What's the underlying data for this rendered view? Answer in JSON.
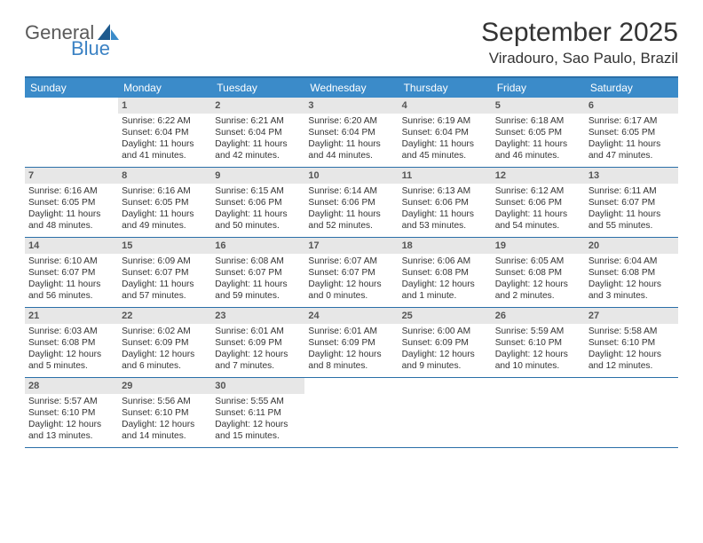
{
  "logo": {
    "word1": "General",
    "word2": "Blue"
  },
  "title": "September 2025",
  "location": "Viradouro, Sao Paulo, Brazil",
  "colors": {
    "header_bg": "#3b8bc9",
    "border": "#2a6fa8",
    "daynum_bg": "#e7e7e7",
    "logo_accent": "#3b82c4",
    "text": "#333333",
    "page_bg": "#ffffff"
  },
  "dow": [
    "Sunday",
    "Monday",
    "Tuesday",
    "Wednesday",
    "Thursday",
    "Friday",
    "Saturday"
  ],
  "weeks": [
    [
      {
        "n": "",
        "empty": true
      },
      {
        "n": "1",
        "sr": "Sunrise: 6:22 AM",
        "ss": "Sunset: 6:04 PM",
        "d1": "Daylight: 11 hours",
        "d2": "and 41 minutes."
      },
      {
        "n": "2",
        "sr": "Sunrise: 6:21 AM",
        "ss": "Sunset: 6:04 PM",
        "d1": "Daylight: 11 hours",
        "d2": "and 42 minutes."
      },
      {
        "n": "3",
        "sr": "Sunrise: 6:20 AM",
        "ss": "Sunset: 6:04 PM",
        "d1": "Daylight: 11 hours",
        "d2": "and 44 minutes."
      },
      {
        "n": "4",
        "sr": "Sunrise: 6:19 AM",
        "ss": "Sunset: 6:04 PM",
        "d1": "Daylight: 11 hours",
        "d2": "and 45 minutes."
      },
      {
        "n": "5",
        "sr": "Sunrise: 6:18 AM",
        "ss": "Sunset: 6:05 PM",
        "d1": "Daylight: 11 hours",
        "d2": "and 46 minutes."
      },
      {
        "n": "6",
        "sr": "Sunrise: 6:17 AM",
        "ss": "Sunset: 6:05 PM",
        "d1": "Daylight: 11 hours",
        "d2": "and 47 minutes."
      }
    ],
    [
      {
        "n": "7",
        "sr": "Sunrise: 6:16 AM",
        "ss": "Sunset: 6:05 PM",
        "d1": "Daylight: 11 hours",
        "d2": "and 48 minutes."
      },
      {
        "n": "8",
        "sr": "Sunrise: 6:16 AM",
        "ss": "Sunset: 6:05 PM",
        "d1": "Daylight: 11 hours",
        "d2": "and 49 minutes."
      },
      {
        "n": "9",
        "sr": "Sunrise: 6:15 AM",
        "ss": "Sunset: 6:06 PM",
        "d1": "Daylight: 11 hours",
        "d2": "and 50 minutes."
      },
      {
        "n": "10",
        "sr": "Sunrise: 6:14 AM",
        "ss": "Sunset: 6:06 PM",
        "d1": "Daylight: 11 hours",
        "d2": "and 52 minutes."
      },
      {
        "n": "11",
        "sr": "Sunrise: 6:13 AM",
        "ss": "Sunset: 6:06 PM",
        "d1": "Daylight: 11 hours",
        "d2": "and 53 minutes."
      },
      {
        "n": "12",
        "sr": "Sunrise: 6:12 AM",
        "ss": "Sunset: 6:06 PM",
        "d1": "Daylight: 11 hours",
        "d2": "and 54 minutes."
      },
      {
        "n": "13",
        "sr": "Sunrise: 6:11 AM",
        "ss": "Sunset: 6:07 PM",
        "d1": "Daylight: 11 hours",
        "d2": "and 55 minutes."
      }
    ],
    [
      {
        "n": "14",
        "sr": "Sunrise: 6:10 AM",
        "ss": "Sunset: 6:07 PM",
        "d1": "Daylight: 11 hours",
        "d2": "and 56 minutes."
      },
      {
        "n": "15",
        "sr": "Sunrise: 6:09 AM",
        "ss": "Sunset: 6:07 PM",
        "d1": "Daylight: 11 hours",
        "d2": "and 57 minutes."
      },
      {
        "n": "16",
        "sr": "Sunrise: 6:08 AM",
        "ss": "Sunset: 6:07 PM",
        "d1": "Daylight: 11 hours",
        "d2": "and 59 minutes."
      },
      {
        "n": "17",
        "sr": "Sunrise: 6:07 AM",
        "ss": "Sunset: 6:07 PM",
        "d1": "Daylight: 12 hours",
        "d2": "and 0 minutes."
      },
      {
        "n": "18",
        "sr": "Sunrise: 6:06 AM",
        "ss": "Sunset: 6:08 PM",
        "d1": "Daylight: 12 hours",
        "d2": "and 1 minute."
      },
      {
        "n": "19",
        "sr": "Sunrise: 6:05 AM",
        "ss": "Sunset: 6:08 PM",
        "d1": "Daylight: 12 hours",
        "d2": "and 2 minutes."
      },
      {
        "n": "20",
        "sr": "Sunrise: 6:04 AM",
        "ss": "Sunset: 6:08 PM",
        "d1": "Daylight: 12 hours",
        "d2": "and 3 minutes."
      }
    ],
    [
      {
        "n": "21",
        "sr": "Sunrise: 6:03 AM",
        "ss": "Sunset: 6:08 PM",
        "d1": "Daylight: 12 hours",
        "d2": "and 5 minutes."
      },
      {
        "n": "22",
        "sr": "Sunrise: 6:02 AM",
        "ss": "Sunset: 6:09 PM",
        "d1": "Daylight: 12 hours",
        "d2": "and 6 minutes."
      },
      {
        "n": "23",
        "sr": "Sunrise: 6:01 AM",
        "ss": "Sunset: 6:09 PM",
        "d1": "Daylight: 12 hours",
        "d2": "and 7 minutes."
      },
      {
        "n": "24",
        "sr": "Sunrise: 6:01 AM",
        "ss": "Sunset: 6:09 PM",
        "d1": "Daylight: 12 hours",
        "d2": "and 8 minutes."
      },
      {
        "n": "25",
        "sr": "Sunrise: 6:00 AM",
        "ss": "Sunset: 6:09 PM",
        "d1": "Daylight: 12 hours",
        "d2": "and 9 minutes."
      },
      {
        "n": "26",
        "sr": "Sunrise: 5:59 AM",
        "ss": "Sunset: 6:10 PM",
        "d1": "Daylight: 12 hours",
        "d2": "and 10 minutes."
      },
      {
        "n": "27",
        "sr": "Sunrise: 5:58 AM",
        "ss": "Sunset: 6:10 PM",
        "d1": "Daylight: 12 hours",
        "d2": "and 12 minutes."
      }
    ],
    [
      {
        "n": "28",
        "sr": "Sunrise: 5:57 AM",
        "ss": "Sunset: 6:10 PM",
        "d1": "Daylight: 12 hours",
        "d2": "and 13 minutes."
      },
      {
        "n": "29",
        "sr": "Sunrise: 5:56 AM",
        "ss": "Sunset: 6:10 PM",
        "d1": "Daylight: 12 hours",
        "d2": "and 14 minutes."
      },
      {
        "n": "30",
        "sr": "Sunrise: 5:55 AM",
        "ss": "Sunset: 6:11 PM",
        "d1": "Daylight: 12 hours",
        "d2": "and 15 minutes."
      },
      {
        "n": "",
        "empty": true
      },
      {
        "n": "",
        "empty": true
      },
      {
        "n": "",
        "empty": true
      },
      {
        "n": "",
        "empty": true
      }
    ]
  ]
}
